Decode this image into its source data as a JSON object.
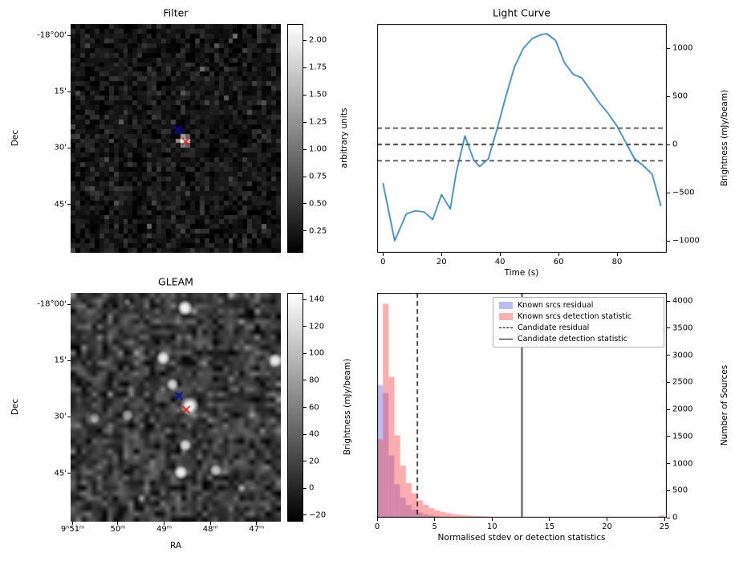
{
  "chart_data": [
    {
      "id": "filter",
      "type": "heatmap",
      "title": "Filter",
      "ylabel": "Dec",
      "ytick_labels": [
        "-18°00'",
        "15'",
        "30'",
        "45'"
      ],
      "ytick_pos": [
        0.05,
        0.296,
        0.542,
        0.788
      ],
      "colorbar": {
        "label": "arbitrary units",
        "vmin": 0.05,
        "vmax": 2.15,
        "tick_values": [
          2.0,
          1.75,
          1.5,
          1.25,
          1.0,
          0.75,
          0.5,
          0.25
        ],
        "tick_labels": [
          "2.00",
          "1.75",
          "1.50",
          "1.25",
          "1.00",
          "0.75",
          "0.50",
          "0.25"
        ]
      },
      "noise": {
        "seed": 42,
        "nx": 44,
        "ny": 48,
        "mean": 0.22,
        "std": 0.13,
        "speckle_p": 0.03,
        "speckle_amp": 0.6
      },
      "hot_pixels": [
        {
          "fx": 0.525,
          "fy": 0.475,
          "v": 1.35
        },
        {
          "fx": 0.55,
          "fy": 0.475,
          "v": 0.9
        },
        {
          "fx": 0.505,
          "fy": 0.5,
          "v": 1.2
        },
        {
          "fx": 0.53,
          "fy": 0.5,
          "v": 2.1
        },
        {
          "fx": 0.555,
          "fy": 0.5,
          "v": 1.6
        },
        {
          "fx": 0.53,
          "fy": 0.525,
          "v": 1.1
        },
        {
          "fx": 0.555,
          "fy": 0.525,
          "v": 0.85
        },
        {
          "fx": 0.78,
          "fy": 0.045,
          "v": 1.0
        }
      ],
      "markers": [
        {
          "shape": "x",
          "color": "#0000dd",
          "fx": 0.512,
          "fy": 0.462
        },
        {
          "shape": "x",
          "color": "#dd1111",
          "fx": 0.547,
          "fy": 0.513
        }
      ]
    },
    {
      "id": "light_curve",
      "type": "line",
      "title": "Light Curve",
      "xlabel": "Time (s)",
      "ylabel": "Brightness (mJy/beam)",
      "line_color": "#1f77b4",
      "xlim": [
        -2,
        97
      ],
      "ylim": [
        -1125,
        1250
      ],
      "xtick_values": [
        0,
        20,
        40,
        60,
        80
      ],
      "xtick_labels": [
        "0",
        "20",
        "40",
        "60",
        "80"
      ],
      "ytick_values": [
        1000,
        500,
        0,
        -500,
        -1000
      ],
      "ytick_labels": [
        "1000",
        "500",
        "0",
        "−500",
        "−1000"
      ],
      "threshold_lines": [
        170,
        0,
        -170
      ],
      "x": [
        0,
        4,
        8,
        11,
        14,
        17,
        20,
        23,
        25,
        28,
        31,
        33,
        36,
        39,
        42,
        45,
        48,
        51,
        54,
        56,
        59,
        62,
        65,
        68,
        71,
        74,
        77,
        80,
        83,
        86,
        89,
        92,
        95
      ],
      "y": [
        -400,
        -1000,
        -720,
        -690,
        -700,
        -780,
        -520,
        -670,
        -300,
        90,
        -160,
        -230,
        -150,
        160,
        500,
        810,
        1000,
        1100,
        1140,
        1150,
        1080,
        850,
        730,
        690,
        560,
        430,
        320,
        190,
        20,
        -150,
        -220,
        -310,
        -640
      ]
    },
    {
      "id": "gleam",
      "type": "heatmap",
      "title": "GLEAM",
      "xlabel": "RA",
      "ylabel": "Dec",
      "xtick_labels": [
        "9ʰ51ᵐ",
        "50ᵐ",
        "49ᵐ",
        "48ᵐ",
        "47ᵐ"
      ],
      "xtick_pos": [
        0.01,
        0.225,
        0.445,
        0.665,
        0.885
      ],
      "ytick_labels": [
        "-18°00'",
        "15'",
        "30'",
        "45'"
      ],
      "ytick_pos": [
        0.05,
        0.296,
        0.542,
        0.788
      ],
      "colorbar": {
        "label": "Brightness (mJy/beam)",
        "vmin": -25,
        "vmax": 145,
        "tick_values": [
          140,
          120,
          100,
          80,
          60,
          40,
          20,
          0,
          -20
        ],
        "tick_labels": [
          "140",
          "120",
          "100",
          "80",
          "60",
          "40",
          "20",
          "0",
          "−20"
        ]
      },
      "noise": {
        "seed": 7,
        "nx": 40,
        "ny": 44,
        "mean": 14,
        "std": 20,
        "speckle_p": 0.03,
        "speckle_amp": 45
      },
      "sources": [
        {
          "fx": 0.545,
          "fy": 0.065,
          "r": 10,
          "a": 1.0
        },
        {
          "fx": 0.27,
          "fy": 0.04,
          "r": 5,
          "a": 0.35
        },
        {
          "fx": 0.44,
          "fy": 0.285,
          "r": 9,
          "a": 0.95
        },
        {
          "fx": 0.975,
          "fy": 0.295,
          "r": 9,
          "a": 0.9
        },
        {
          "fx": 0.485,
          "fy": 0.4,
          "r": 8,
          "a": 0.85
        },
        {
          "fx": 0.565,
          "fy": 0.495,
          "r": 12,
          "a": 1.0
        },
        {
          "fx": 0.27,
          "fy": 0.535,
          "r": 8,
          "a": 0.6
        },
        {
          "fx": 0.115,
          "fy": 0.545,
          "r": 7,
          "a": 0.45
        },
        {
          "fx": 0.545,
          "fy": 0.665,
          "r": 8,
          "a": 0.8
        },
        {
          "fx": 0.525,
          "fy": 0.785,
          "r": 9,
          "a": 0.95
        },
        {
          "fx": 0.69,
          "fy": 0.775,
          "r": 8,
          "a": 0.7
        }
      ],
      "markers": [
        {
          "shape": "x",
          "color": "#0000dd",
          "fx": 0.515,
          "fy": 0.45
        },
        {
          "shape": "x",
          "color": "#dd1111",
          "fx": 0.55,
          "fy": 0.51
        }
      ]
    },
    {
      "id": "histogram",
      "type": "bar",
      "xlabel": "Normalised stdev or detection statistics",
      "ylabel": "Number of Sources",
      "xlim": [
        0,
        25.2
      ],
      "ylim": [
        0,
        4150
      ],
      "xtick_values": [
        0,
        5,
        10,
        15,
        20,
        25
      ],
      "xtick_labels": [
        "0",
        "5",
        "10",
        "15",
        "20",
        "25"
      ],
      "ytick_values": [
        0,
        500,
        1000,
        1500,
        2000,
        2500,
        3000,
        3500,
        4000
      ],
      "ytick_labels": [
        "0",
        "500",
        "1000",
        "1500",
        "2000",
        "2500",
        "3000",
        "3500",
        "4000"
      ],
      "bin_width": 0.5,
      "series": [
        {
          "name": "Known srcs residual",
          "fill": "rgba(70,70,230,0.35)",
          "values": [
            2450,
            2300,
            1150,
            620,
            370,
            230,
            150,
            95,
            60,
            38,
            24,
            15,
            10,
            7,
            4,
            3,
            2,
            1,
            1,
            1
          ]
        },
        {
          "name": "Known srcs detection statistic",
          "fill": "rgba(245,60,60,0.42)",
          "values": [
            1450,
            3950,
            2600,
            1520,
            960,
            640,
            450,
            320,
            235,
            175,
            135,
            105,
            82,
            65,
            52,
            42,
            34,
            28,
            23,
            19,
            16,
            14,
            12,
            10,
            9,
            8,
            7,
            6,
            6,
            5,
            5,
            4,
            4,
            4,
            3,
            3,
            3,
            3,
            2,
            2,
            2,
            2,
            2,
            2,
            2,
            1,
            1,
            1,
            1,
            40
          ]
        }
      ],
      "candidate_residual": 3.5,
      "candidate_detection_statistic": 12.6,
      "legend": [
        {
          "swatch": "patch",
          "color": "#bcbcf2",
          "label": "Known srcs residual"
        },
        {
          "swatch": "patch",
          "color": "#f8b2b2",
          "label": "Known srcs detection statistic"
        },
        {
          "swatch": "dashed-line",
          "label": "Candidate residual"
        },
        {
          "swatch": "solid-line",
          "label": "Candidate detection statistic"
        }
      ]
    }
  ]
}
